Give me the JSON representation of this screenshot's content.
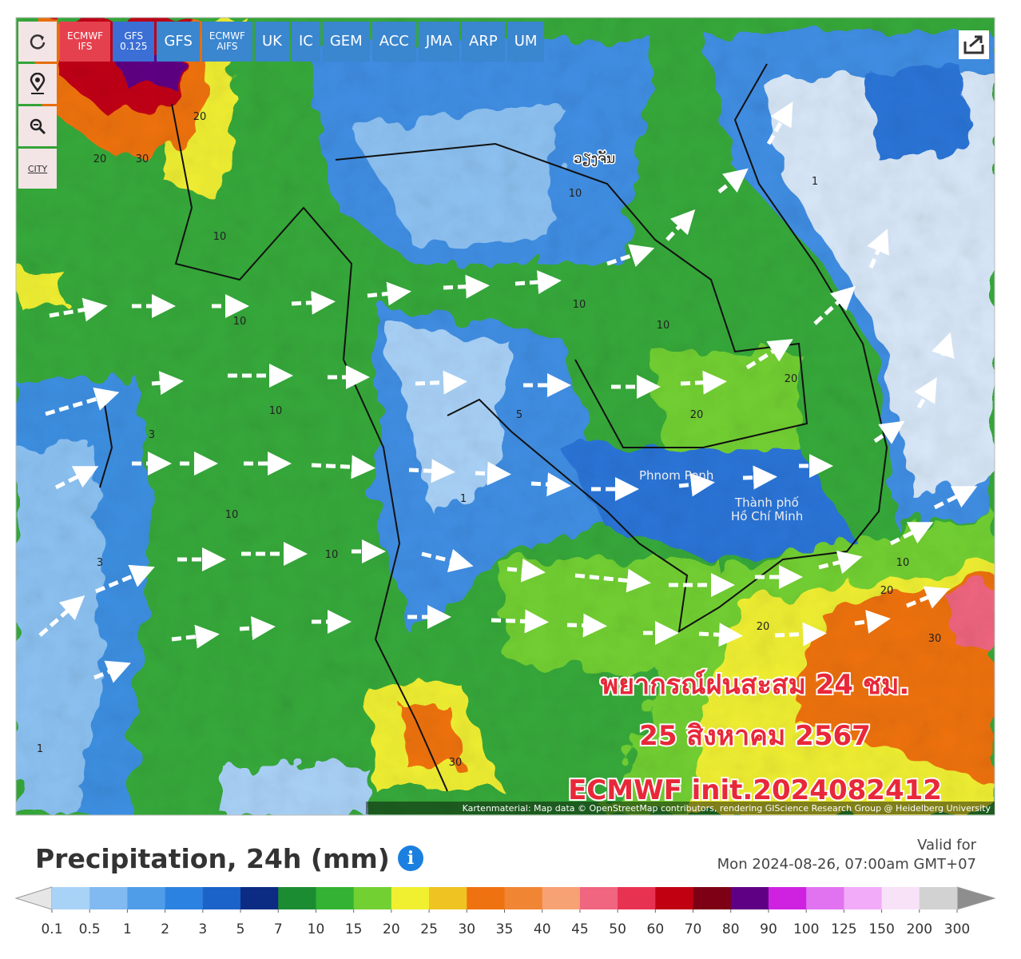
{
  "toolbar": {
    "buttons": [
      {
        "label": "ECMWF",
        "sub": "IFS"
      },
      {
        "label": "GFS",
        "sub": "0.125"
      },
      {
        "label": "GFS"
      },
      {
        "label": "ECMWF",
        "sub": "AIFS"
      },
      {
        "label": "UK"
      },
      {
        "label": "IC"
      },
      {
        "label": "GEM"
      },
      {
        "label": "ACC"
      },
      {
        "label": "JMA"
      },
      {
        "label": "ARP"
      },
      {
        "label": "UM"
      }
    ],
    "city": "CITY"
  },
  "map": {
    "places": [
      "ວຽງຈັນ",
      "Phnom Penh",
      "Thành phố",
      "Hồ Chí Minh"
    ],
    "contour_labels": [
      "20",
      "20",
      "30",
      "10",
      "10",
      "10",
      "3",
      "3",
      "10",
      "10",
      "1",
      "10",
      "10",
      "20",
      "20",
      "1",
      "20",
      "30",
      "20",
      "30",
      "1",
      "10",
      "5",
      "10"
    ],
    "overlay": [
      "พยากรณ์ฝนสะสม 24 ชม.",
      "25 สิงหาคม 2567",
      "ECMWF init.2024082412"
    ],
    "attribution": "Kartenmaterial: Map data © OpenStreetMap contributors, rendering GIScience Research Group @ Heidelberg University"
  },
  "legend": {
    "title": "Precipitation, 24h (mm)",
    "valid_label": "Valid for",
    "valid_time": "Mon 2024-08-26, 07:00am GMT+07",
    "ticks": [
      0.1,
      0.5,
      1,
      2,
      3,
      5,
      7,
      10,
      15,
      20,
      25,
      30,
      35,
      40,
      45,
      50,
      60,
      70,
      80,
      90,
      100,
      125,
      150,
      200,
      300
    ],
    "colors": [
      "#a9d2f7",
      "#80baf0",
      "#4f9de9",
      "#2c82e0",
      "#1b62c9",
      "#0b2c82",
      "#1c8c33",
      "#33b233",
      "#72d032",
      "#f0ef30",
      "#efc321",
      "#ef7211",
      "#f08633",
      "#f7a274",
      "#f0657f",
      "#e83252",
      "#c10012",
      "#7e0014",
      "#5f0084",
      "#cf22e0",
      "#e172f0",
      "#f1abf8",
      "#f8e2f8",
      "#d2d2d2"
    ],
    "low_color": "#e6e6e6",
    "high_color": "#8e8e8e"
  }
}
